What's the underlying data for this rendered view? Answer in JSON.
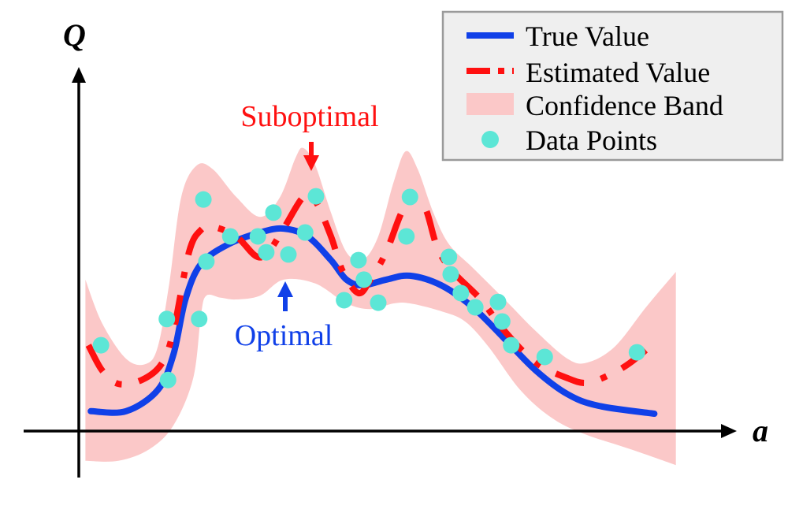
{
  "chart_data": {
    "type": "line",
    "title": "",
    "xlabel": "a",
    "ylabel": "Q",
    "xlim": [
      0,
      100
    ],
    "ylim": [
      -12,
      110
    ],
    "grid": false,
    "legend_position": "top-right",
    "colors": {
      "true_value": "#1040e8",
      "estimated_value": "#ff1010",
      "confidence_band": "#fbc8c8",
      "data_points": "#5ce6d6",
      "suboptimal": "#ff1010",
      "optimal": "#1040e8"
    },
    "series": [
      {
        "name": "True Value",
        "style": "solid",
        "x": [
          2.0,
          7.9,
          13.2,
          15.8,
          17.8,
          20.4,
          25.0,
          30.3,
          34.2,
          38.2,
          42.1,
          44.7,
          47.4,
          51.3,
          55.3,
          60.5,
          65.8,
          71.1,
          76.3,
          81.6,
          86.8,
          96.1
        ],
        "y": [
          5.6,
          5.6,
          11.6,
          21.6,
          37.1,
          47.1,
          52.7,
          56.0,
          57.1,
          54.9,
          48.2,
          42.7,
          41.1,
          42.7,
          43.8,
          41.1,
          34.9,
          26.0,
          17.1,
          10.4,
          7.1,
          4.9
        ]
      },
      {
        "name": "Estimated Value",
        "style": "dash-dot",
        "x": [
          1.6,
          3.9,
          6.6,
          10.5,
          13.8,
          15.8,
          18.4,
          20.4,
          22.4,
          26.3,
          29.6,
          31.6,
          34.2,
          37.5,
          39.5,
          42.1,
          44.1,
          46.7,
          48.7,
          51.3,
          53.9,
          55.9,
          57.9,
          59.9,
          62.5,
          67.1,
          71.1,
          76.3,
          81.6,
          84.9,
          88.8,
          92.1,
          96.1
        ],
        "y": [
          24.2,
          17.1,
          13.3,
          14.4,
          18.9,
          28.2,
          50.4,
          56.7,
          57.6,
          54.9,
          49.3,
          50.4,
          57.1,
          66.0,
          64.9,
          54.9,
          44.9,
          38.9,
          42.7,
          50.4,
          61.6,
          65.6,
          62.7,
          51.6,
          44.9,
          37.1,
          28.2,
          19.3,
          14.9,
          13.6,
          16.0,
          19.3,
          24.9
        ]
      }
    ],
    "band": {
      "name": "Confidence Band",
      "upper": {
        "x": [
          1.1,
          3.9,
          7.9,
          11.2,
          13.2,
          15.1,
          17.1,
          19.7,
          22.4,
          26.3,
          30.3,
          33.6,
          36.2,
          37.5,
          39.5,
          42.1,
          44.7,
          47.4,
          50.0,
          52.6,
          54.6,
          56.6,
          59.2,
          61.8,
          65.8,
          71.1,
          76.3,
          81.6,
          84.9,
          89.5,
          94.7,
          99.7
        ],
        "y": [
          42.7,
          30.4,
          20.4,
          18.9,
          23.8,
          41.6,
          66.0,
          74.9,
          73.8,
          66.0,
          60.4,
          66.0,
          77.1,
          79.8,
          74.9,
          61.6,
          50.4,
          48.2,
          54.9,
          70.4,
          78.9,
          73.8,
          61.6,
          52.7,
          46.0,
          37.1,
          28.2,
          20.4,
          19.3,
          23.8,
          34.9,
          44.9
        ]
      },
      "lower": {
        "x": [
          1.1,
          6.6,
          11.8,
          15.8,
          19.1,
          20.4,
          21.3,
          23.7,
          26.3,
          30.3,
          34.2,
          39.5,
          44.7,
          48.7,
          52.6,
          55.3,
          60.5,
          64.5,
          68.4,
          73.7,
          78.9,
          84.2,
          92.1,
          99.7
        ],
        "y": [
          -8.4,
          -8.4,
          -5.1,
          1.6,
          14.9,
          32.7,
          38.2,
          37.6,
          37.1,
          38.2,
          42.7,
          41.6,
          36.0,
          34.4,
          36.0,
          36.0,
          33.8,
          30.9,
          23.8,
          11.6,
          3.8,
          -0.7,
          -5.1,
          -9.6
        ]
      }
    },
    "points": {
      "name": "Data Points",
      "x": [
        3.7,
        20.8,
        14.7,
        14.9,
        20.1,
        21.3,
        25.3,
        29.9,
        32.5,
        31.3,
        35.0,
        37.8,
        39.6,
        44.3,
        46.7,
        47.6,
        50.0,
        54.7,
        55.3,
        61.8,
        62.1,
        63.8,
        66.2,
        70.0,
        70.7,
        72.2,
        77.8,
        93.2
      ],
      "y": [
        24.2,
        65.3,
        31.6,
        14.4,
        31.6,
        47.8,
        54.9,
        54.9,
        61.6,
        50.4,
        49.8,
        56.0,
        66.2,
        36.9,
        48.2,
        42.7,
        36.2,
        54.9,
        66.0,
        49.1,
        44.2,
        38.9,
        34.9,
        36.4,
        30.9,
        24.2,
        20.9,
        22.2
      ]
    },
    "annotations": [
      {
        "text": "Suboptimal",
        "x": 39.5,
        "y": 74,
        "arrow": "down"
      },
      {
        "text": "Optimal",
        "x": 34.5,
        "y": 41,
        "arrow": "up"
      }
    ],
    "legend": [
      "True Value",
      "Estimated Value",
      "Confidence Band",
      "Data Points"
    ]
  }
}
